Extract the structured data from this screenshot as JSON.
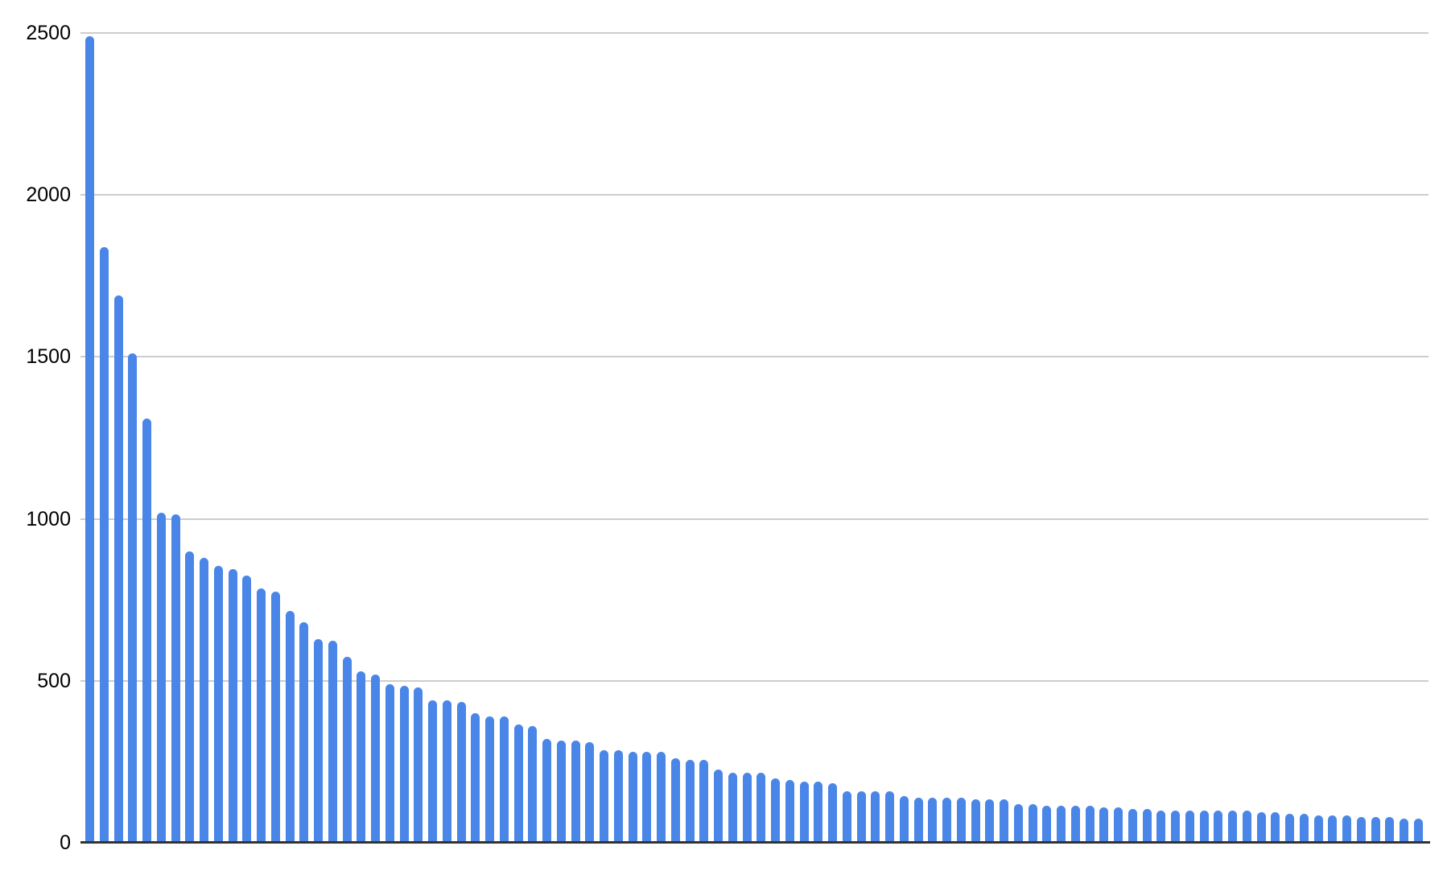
{
  "chart_data": {
    "type": "bar",
    "title": "",
    "xlabel": "",
    "ylabel": "",
    "categories": [],
    "values": [
      2490,
      1840,
      1690,
      1510,
      1310,
      1020,
      1015,
      900,
      880,
      855,
      845,
      825,
      785,
      775,
      715,
      680,
      630,
      625,
      575,
      530,
      520,
      490,
      485,
      480,
      440,
      440,
      435,
      400,
      390,
      390,
      365,
      360,
      320,
      315,
      315,
      310,
      285,
      285,
      280,
      280,
      280,
      260,
      255,
      255,
      225,
      215,
      215,
      215,
      200,
      195,
      190,
      190,
      185,
      160,
      160,
      160,
      160,
      145,
      140,
      140,
      140,
      140,
      135,
      135,
      135,
      120,
      120,
      115,
      115,
      115,
      115,
      110,
      110,
      105,
      105,
      100,
      100,
      100,
      100,
      100,
      100,
      100,
      95,
      95,
      90,
      90,
      85,
      85,
      85,
      80,
      80,
      80,
      75,
      75
    ],
    "ylim": [
      0,
      2500
    ],
    "y_ticks": [
      0,
      500,
      1000,
      1500,
      2000,
      2500
    ],
    "y_tick_labels": [
      "0",
      "500",
      "1000",
      "1500",
      "2000",
      "2500"
    ],
    "grid": "horizontal",
    "legend": "none",
    "x_axis_labels_visible": false,
    "colors": {
      "bar": "#4a86e8",
      "gridline": "#cdcdcd",
      "axis_line": "#333333",
      "tick_label": "#000000",
      "background": "#ffffff"
    }
  }
}
